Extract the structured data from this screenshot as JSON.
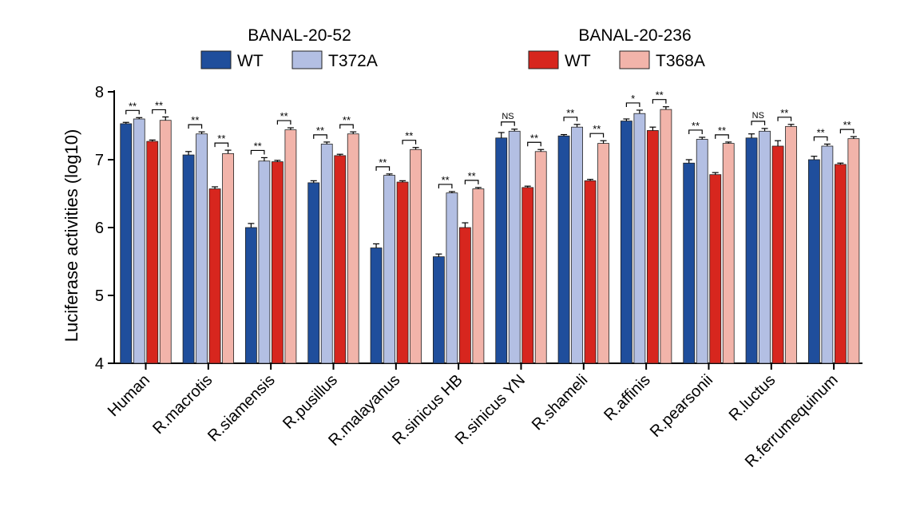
{
  "chart_data": {
    "type": "bar",
    "ylabel": "Luciferase activities (log10)",
    "xlabel": "",
    "ylim": [
      4,
      8
    ],
    "yticks": [
      4,
      5,
      6,
      7,
      8
    ],
    "categories": [
      "Human",
      "R.macrotis",
      "R.siamensis",
      "R.pusillus",
      "R.malayanus",
      "R.sinicus HB",
      "R.sinicus YN",
      "R.shameli",
      "R.affinis",
      "R.pearsonii",
      "R.luctus",
      "R.ferrumequinum"
    ],
    "legend_groups": [
      {
        "title": "BANAL-20-52",
        "series_indices": [
          0,
          1
        ]
      },
      {
        "title": "BANAL-20-236",
        "series_indices": [
          2,
          3
        ]
      }
    ],
    "series": [
      {
        "name": "WT",
        "color": "#1f4e9c",
        "values": [
          7.53,
          7.07,
          6.0,
          6.66,
          5.7,
          5.57,
          7.32,
          7.35,
          7.57,
          6.95,
          7.32,
          7.0
        ],
        "errors": [
          0.02,
          0.05,
          0.06,
          0.03,
          0.06,
          0.04,
          0.08,
          0.02,
          0.03,
          0.05,
          0.06,
          0.05
        ]
      },
      {
        "name": "T372A",
        "color": "#b3bfe3",
        "values": [
          7.6,
          7.38,
          6.98,
          7.23,
          6.77,
          6.51,
          7.42,
          7.48,
          7.68,
          7.3,
          7.42,
          7.2
        ],
        "errors": [
          0.02,
          0.03,
          0.05,
          0.03,
          0.02,
          0.02,
          0.03,
          0.04,
          0.05,
          0.03,
          0.04,
          0.03
        ]
      },
      {
        "name": "WT",
        "color": "#d7261e",
        "values": [
          7.27,
          6.57,
          6.97,
          7.06,
          6.67,
          6.0,
          6.59,
          6.69,
          7.43,
          6.78,
          7.2,
          6.93
        ],
        "errors": [
          0.02,
          0.03,
          0.02,
          0.02,
          0.02,
          0.07,
          0.02,
          0.02,
          0.05,
          0.03,
          0.08,
          0.02
        ]
      },
      {
        "name": "T368A",
        "color": "#f2b4aa",
        "values": [
          7.58,
          7.09,
          7.44,
          7.38,
          7.15,
          6.57,
          7.12,
          7.24,
          7.74,
          7.24,
          7.49,
          7.31
        ],
        "errors": [
          0.05,
          0.05,
          0.03,
          0.03,
          0.03,
          0.02,
          0.03,
          0.04,
          0.04,
          0.02,
          0.03,
          0.03
        ]
      }
    ],
    "significance": [
      [
        "**",
        "**"
      ],
      [
        "**",
        "**"
      ],
      [
        "**",
        "**"
      ],
      [
        "**",
        "**"
      ],
      [
        "**",
        "**"
      ],
      [
        "**",
        "**"
      ],
      [
        "NS",
        "**"
      ],
      [
        "**",
        "**"
      ],
      [
        "*",
        "**"
      ],
      [
        "**",
        "**"
      ],
      [
        "NS",
        "**"
      ],
      [
        "**",
        "**"
      ]
    ]
  }
}
